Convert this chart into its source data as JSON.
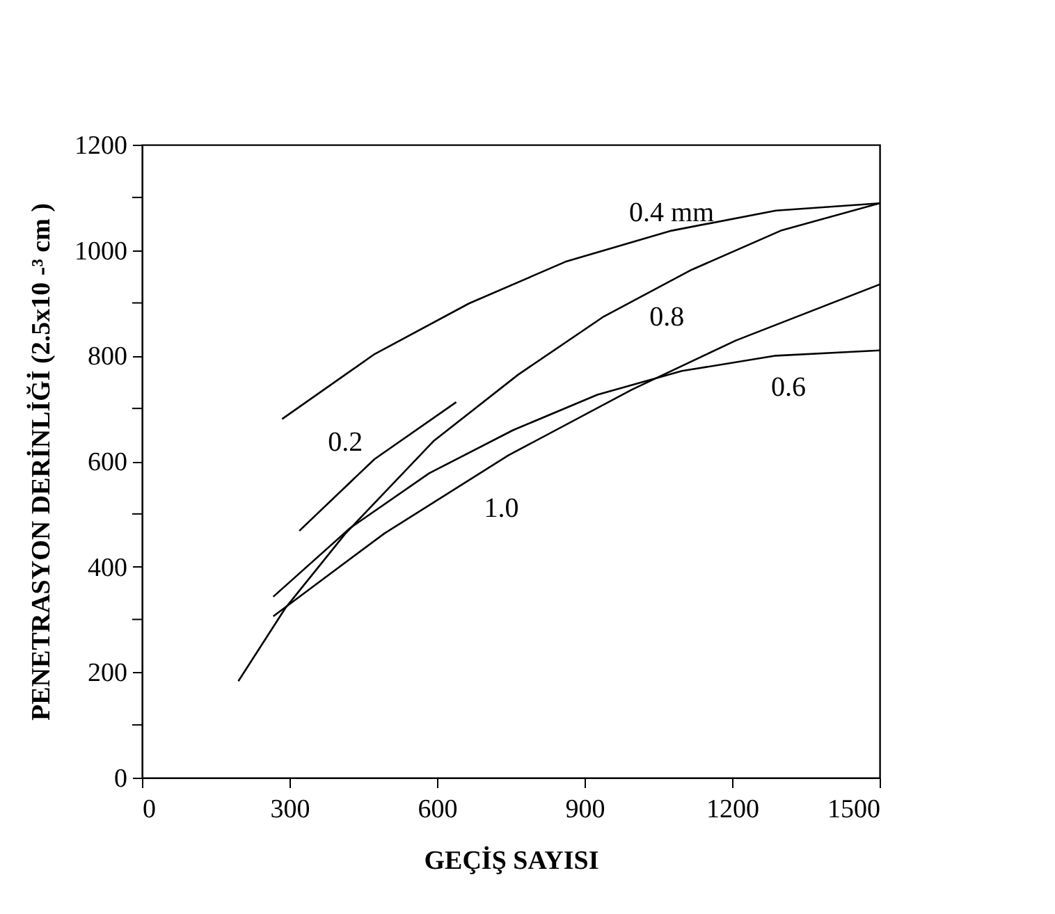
{
  "chart_data": {
    "type": "line",
    "xlabel": "GEÇİŞ SAYISI",
    "ylabel": "PENETRASYON DERİNLİĞİ (2.5x10 -³ cm )",
    "xlim": [
      0,
      1500
    ],
    "xticks": [
      0,
      300,
      600,
      900,
      1200,
      1500
    ],
    "ylim": [
      0,
      1200
    ],
    "yticks": [
      0,
      {
        "value": 100,
        "label": null
      },
      200,
      {
        "value": 300,
        "label": null
      },
      400,
      {
        "value": 500,
        "label": null
      },
      600,
      {
        "value": 700,
        "label": null
      },
      800,
      {
        "value": 900,
        "label": null
      },
      1000,
      {
        "value": 1100,
        "label": null
      },
      1200
    ],
    "grid": false,
    "marker": "none",
    "line_style": "solid",
    "series": [
      {
        "name": "0.4 mm",
        "color": "#000000",
        "x": [
          285,
          473,
          665,
          861,
          1077,
          1289,
          1500
        ],
        "values": [
          680,
          803,
          899,
          978,
          1037,
          1075,
          1089
        ]
      },
      {
        "name": "0.2",
        "color": "#000000",
        "x": [
          320,
          473,
          639
        ],
        "values": [
          468,
          604,
          712
        ]
      },
      {
        "name": "0.8",
        "color": "#000000",
        "x": [
          196,
          292,
          413,
          594,
          765,
          937,
          1118,
          1299,
          1500
        ],
        "values": [
          183,
          322,
          462,
          639,
          764,
          873,
          963,
          1037,
          1089
        ]
      },
      {
        "name": "0.6",
        "color": "#000000",
        "x": [
          267,
          423,
          584,
          755,
          926,
          1098,
          1289,
          1500
        ],
        "values": [
          343,
          473,
          577,
          659,
          726,
          771,
          800,
          810
        ]
      },
      {
        "name": "1.0",
        "color": "#000000",
        "x": [
          267,
          493,
          745,
          997,
          1208,
          1500
        ],
        "values": [
          306,
          463,
          611,
          736,
          829,
          935
        ]
      }
    ]
  }
}
